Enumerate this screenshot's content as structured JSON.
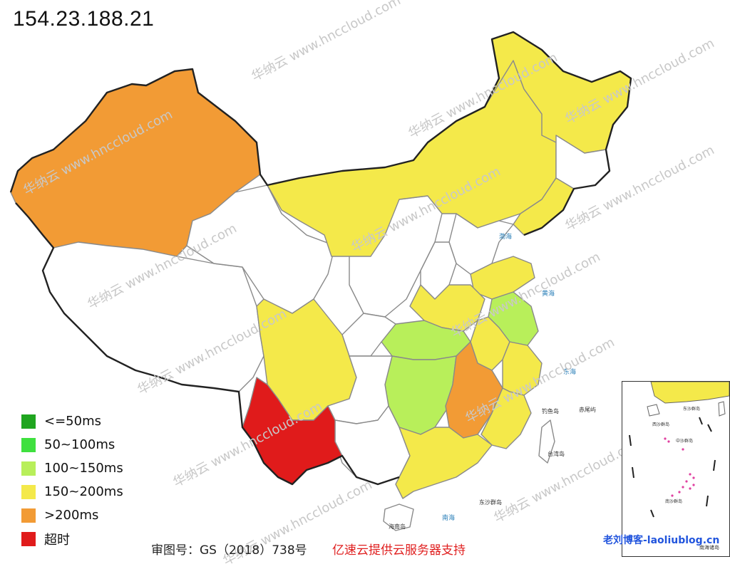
{
  "ip_address": "154.23.188.21",
  "legend": [
    {
      "label": "<=50ms",
      "color": "#1fa51f"
    },
    {
      "label": "50~100ms",
      "color": "#3fe03f"
    },
    {
      "label": "100~150ms",
      "color": "#b8ef5a"
    },
    {
      "label": "150~200ms",
      "color": "#f4e94a"
    },
    {
      "label": ">200ms",
      "color": "#f29b35"
    },
    {
      "label": "超时",
      "color": "#e01b1b"
    }
  ],
  "map_approval": "审图号：GS（2018）738号",
  "sponsor_text": "亿速云提供云服务器支持",
  "blog_watermark": "老刘博客-laoliublog.cn",
  "watermark_text": "华纳云 www.hnccloud.com",
  "sea_labels": [
    "渤海",
    "黄海",
    "东海",
    "南海"
  ],
  "island_labels": [
    "钓鱼岛",
    "赤尾屿",
    "台湾岛",
    "东沙群岛",
    "海南岛"
  ],
  "inset_labels": [
    "东沙群岛",
    "西沙群岛",
    "中沙群岛",
    "南沙群岛",
    "南海诸岛"
  ]
}
